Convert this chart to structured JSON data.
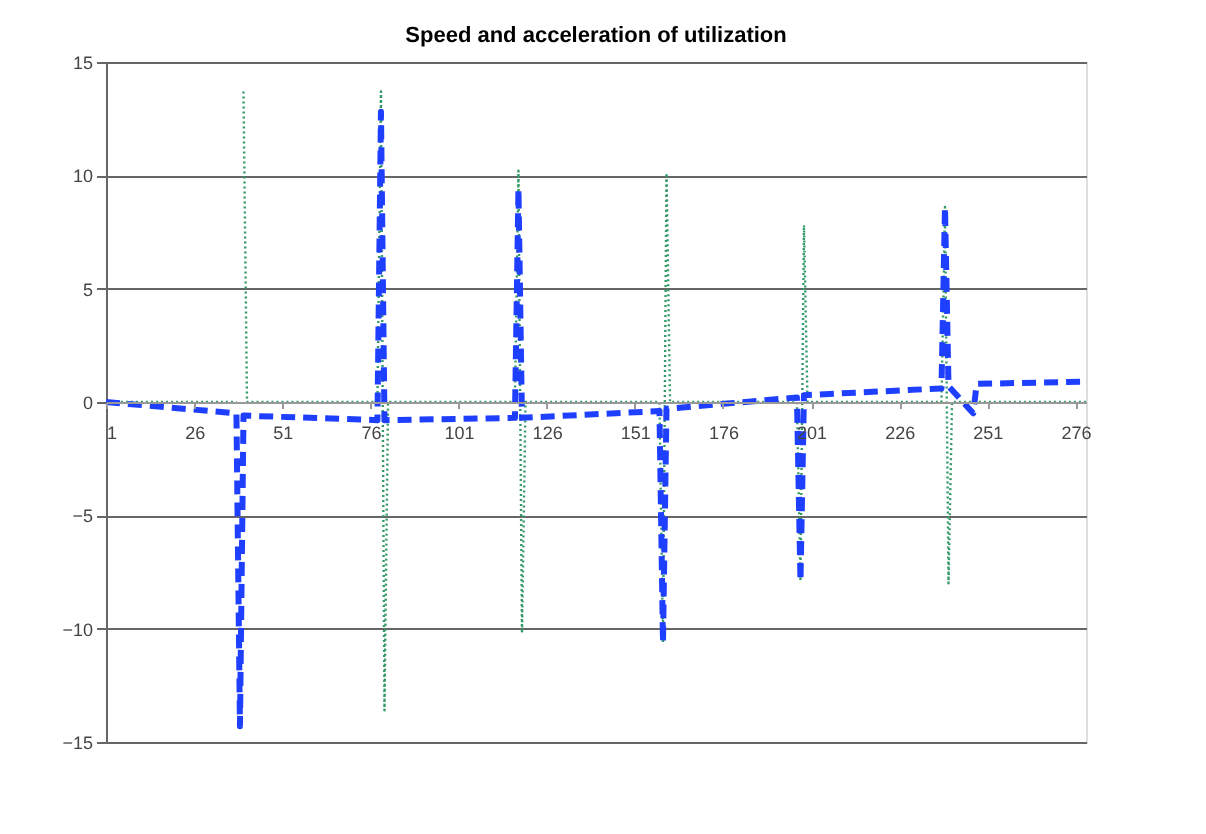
{
  "chart_data": {
    "type": "line",
    "title": "Speed and acceleration of utilization",
    "xlim": [
      1,
      279
    ],
    "xticks": [
      1,
      26,
      51,
      76,
      101,
      126,
      151,
      176,
      201,
      226,
      251,
      276
    ],
    "ylim": [
      -15,
      15
    ],
    "yticks": [
      -15,
      -10,
      -5,
      0,
      5,
      10,
      15
    ],
    "grid": "y",
    "series": [
      {
        "color": "#339966",
        "line_style": "dotted",
        "x": [
          1,
          38,
          39,
          40,
          41,
          78,
          79,
          80,
          81,
          117,
          118,
          119,
          120,
          158,
          159,
          160,
          161,
          197,
          198,
          199,
          200,
          238,
          239,
          240,
          241,
          279
        ],
        "values": [
          0,
          0,
          null,
          13.7,
          0,
          0,
          13.7,
          -13.6,
          0,
          0,
          10.2,
          -10.2,
          0,
          0,
          -10.6,
          10.1,
          0,
          0,
          -7.9,
          7.8,
          0,
          0,
          8.6,
          -8.0,
          0,
          0
        ]
      },
      {
        "color": "#1f3fff",
        "line_style": "dashed",
        "x": [
          1,
          38,
          39,
          40,
          78,
          79,
          80,
          117,
          118,
          119,
          158,
          159,
          160,
          197,
          198,
          199,
          238,
          239,
          240,
          247,
          248,
          279
        ],
        "values": [
          0,
          -0.5,
          -14.3,
          -0.6,
          -0.8,
          12.8,
          -0.8,
          -0.7,
          9.4,
          -0.7,
          -0.4,
          -10.6,
          -0.3,
          0.2,
          -7.9,
          0.3,
          0.6,
          8.6,
          0.7,
          -0.5,
          0.8,
          0.9
        ]
      }
    ]
  }
}
